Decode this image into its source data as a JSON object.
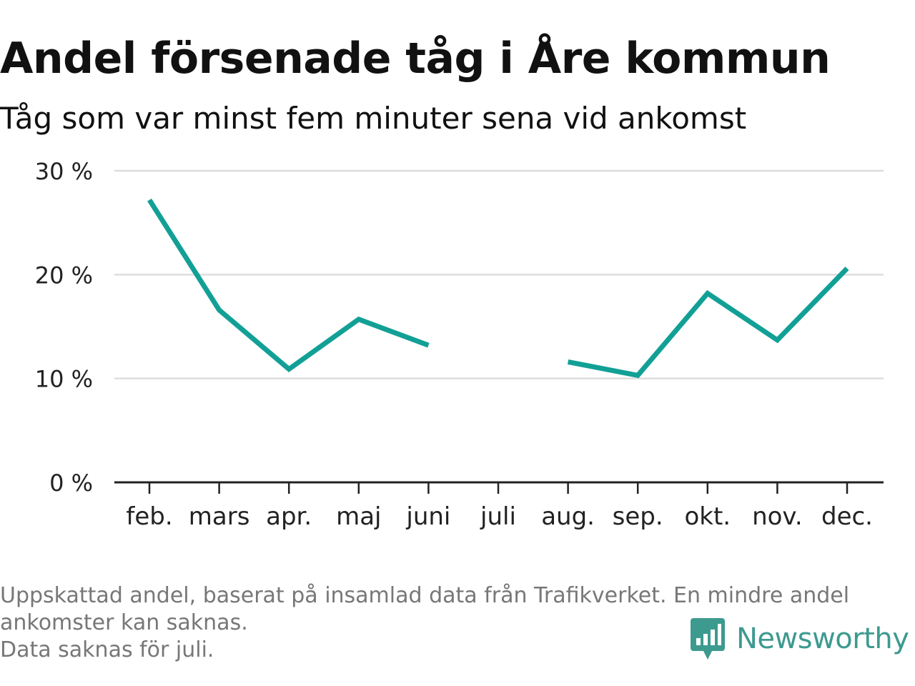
{
  "title": "Andel försenade tåg i Åre kommun",
  "subtitle": "Tåg som var minst fem minuter sena vid ankomst",
  "footnote": {
    "line1": "Uppskattad andel, baserat på insamlad data från Trafikverket. En mindre andel",
    "line2": "ankomster kan saknas.",
    "line3": "Data saknas för juli."
  },
  "brand": {
    "name": "Newsworthy",
    "logo_icon": "bar-chart-speech-bubble-icon"
  },
  "colors": {
    "line": "#12a096",
    "grid": "#dddddd",
    "axis": "#222222",
    "brand": "#3d9a8f",
    "footnote": "#777777"
  },
  "chart_data": {
    "type": "line",
    "categories": [
      "feb.",
      "mars",
      "apr.",
      "maj",
      "juni",
      "juli",
      "aug.",
      "sep.",
      "okt.",
      "nov.",
      "dec."
    ],
    "series": [
      {
        "values": [
          27.2,
          16.6,
          10.9,
          15.7,
          13.2,
          null,
          11.6,
          10.3,
          18.2,
          13.7,
          20.6
        ]
      }
    ],
    "ylim": [
      0,
      30
    ],
    "yticks": [
      0,
      10,
      20,
      30
    ],
    "ytick_labels": [
      "0 %",
      "10 %",
      "20 %",
      "30 %"
    ],
    "xlabel": "",
    "ylabel": "",
    "grid": true,
    "legend": false
  }
}
